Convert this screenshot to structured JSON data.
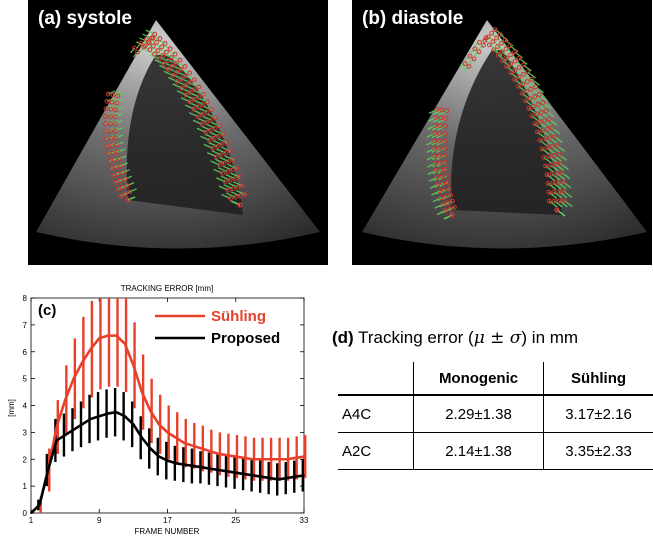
{
  "panels": {
    "a_title": "(a) systole",
    "b_title": "(b) diastole"
  },
  "colors": {
    "suhling": "#e8402a",
    "proposed": "#000000",
    "tracking_points": "#d43232",
    "motion_vectors": "#5bd25b"
  },
  "chart_data": {
    "type": "line",
    "panel_label": "(c)",
    "title": "TRACKING ERROR [mm]",
    "xlabel": "FRAME NUMBER",
    "ylabel": "[mm]",
    "xlim": [
      1,
      33
    ],
    "ylim": [
      0,
      8
    ],
    "xticks": [
      1,
      9,
      17,
      25,
      33
    ],
    "yticks": [
      0,
      1,
      2,
      3,
      4,
      5,
      6,
      7,
      8
    ],
    "legend_position": "top-right",
    "x": [
      1,
      2,
      3,
      4,
      5,
      6,
      7,
      8,
      9,
      10,
      11,
      12,
      13,
      14,
      15,
      16,
      17,
      18,
      19,
      20,
      21,
      22,
      23,
      24,
      25,
      26,
      27,
      28,
      29,
      30,
      31,
      32,
      33
    ],
    "series": [
      {
        "name": "Sühling",
        "color": "#e8402a",
        "mean": [
          0,
          0.3,
          1.6,
          3.2,
          4.2,
          5.0,
          5.6,
          6.1,
          6.5,
          6.6,
          6.6,
          6.3,
          5.5,
          4.5,
          3.8,
          3.3,
          3.0,
          2.8,
          2.6,
          2.5,
          2.4,
          2.3,
          2.2,
          2.15,
          2.1,
          2.05,
          2.0,
          2.0,
          2.0,
          2.0,
          2.0,
          2.05,
          2.1
        ],
        "std": [
          0,
          0.3,
          0.8,
          1.0,
          1.3,
          1.5,
          1.7,
          1.8,
          1.9,
          1.9,
          1.9,
          1.8,
          1.6,
          1.4,
          1.2,
          1.1,
          1.0,
          0.95,
          0.9,
          0.85,
          0.85,
          0.8,
          0.8,
          0.8,
          0.8,
          0.8,
          0.8,
          0.8,
          0.8,
          0.8,
          0.8,
          0.8,
          0.8
        ]
      },
      {
        "name": "Proposed",
        "color": "#000000",
        "mean": [
          0,
          0.3,
          1.6,
          2.7,
          2.9,
          3.1,
          3.3,
          3.5,
          3.6,
          3.7,
          3.75,
          3.6,
          3.3,
          2.8,
          2.4,
          2.1,
          1.95,
          1.85,
          1.8,
          1.75,
          1.7,
          1.65,
          1.6,
          1.55,
          1.5,
          1.45,
          1.4,
          1.35,
          1.3,
          1.25,
          1.3,
          1.35,
          1.4
        ],
        "std": [
          0,
          0.2,
          0.6,
          0.8,
          0.8,
          0.8,
          0.85,
          0.9,
          0.9,
          0.9,
          0.9,
          0.9,
          0.85,
          0.8,
          0.75,
          0.7,
          0.7,
          0.65,
          0.65,
          0.65,
          0.6,
          0.6,
          0.6,
          0.6,
          0.6,
          0.6,
          0.6,
          0.6,
          0.6,
          0.6,
          0.6,
          0.6,
          0.6
        ]
      }
    ]
  },
  "table": {
    "label": "(d)",
    "title_pre": "Tracking  error (",
    "title_math": "μ ± σ",
    "title_post": ") in mm",
    "headers": [
      "",
      "Monogenic",
      "Sühling"
    ],
    "rows": [
      [
        "A4C",
        "2.29±1.38",
        "3.17±2.16"
      ],
      [
        "A2C",
        "2.14±1.38",
        "3.35±2.33"
      ]
    ]
  }
}
